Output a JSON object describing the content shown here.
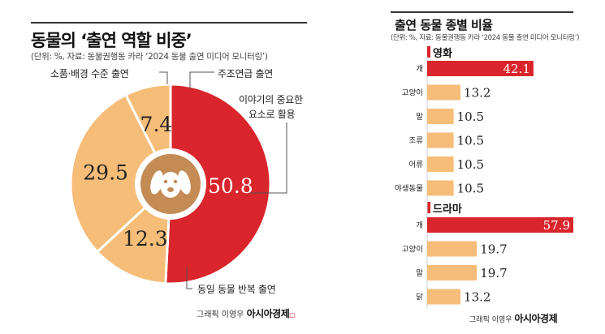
{
  "left": {
    "title": "동물의 ‘출연 역할 비중’",
    "subtitle": "(단위: %, 자료: 동물권행동 카라 ‘2024 동물 출연 미디어 모니터링’)",
    "labels": {
      "props": "소품·배경 수준 출연",
      "supporting": "주조연급 출연",
      "story_line1": "이야기의 중요한",
      "story_line2": "요소로 활용",
      "repeat": "동일 동물 반복 출연"
    },
    "credit_text": "그래픽 이영우 ",
    "credit_brand": "아시아경제"
  },
  "right": {
    "title": "출연 동물 종별 비율",
    "subtitle": "(단위: %, 자료: 동물권행동 카라 ‘2024 동물 출연 미디어 모니터링’)",
    "credit_text": "그래픽 이영우 ",
    "credit_brand": "아시아경제"
  },
  "colors": {
    "red": "#d9252b",
    "peach": "#f6bd78",
    "brown": "#c48b55"
  },
  "icons": {
    "center": "dog-face-icon"
  },
  "chart_data": [
    {
      "type": "pie",
      "title": "동물의 ‘출연 역할 비중’",
      "slices": [
        {
          "label": "소품·배경 수준 출연",
          "value": 50.8,
          "color": "#d9252b"
        },
        {
          "label": "주조연급 출연",
          "value": 12.3,
          "color": "#f6bd78"
        },
        {
          "label": "이야기의 중요한 요소로 활용",
          "value": 29.5,
          "color": "#f6bd78"
        },
        {
          "label": "동일 동물 반복 출연",
          "value": 7.4,
          "color": "#f6bd78"
        }
      ]
    },
    {
      "type": "bar",
      "title": "출연 동물 종별 비율",
      "groups": [
        {
          "name": "영화",
          "categories": [
            "개",
            "고양이",
            "말",
            "조류",
            "어류",
            "야생동물"
          ],
          "values": [
            42.1,
            13.2,
            10.5,
            10.5,
            10.5,
            10.5
          ],
          "value_labels": [
            "42.1",
            "13.2",
            "10.5",
            "10.5",
            "10.5",
            "10.5"
          ]
        },
        {
          "name": "드라마",
          "categories": [
            "개",
            "고양이",
            "말",
            "닭"
          ],
          "values": [
            57.9,
            19.7,
            19.7,
            13.2
          ],
          "value_labels": [
            "57.9",
            "19.7",
            "19.7",
            "13.2"
          ]
        }
      ]
    }
  ]
}
